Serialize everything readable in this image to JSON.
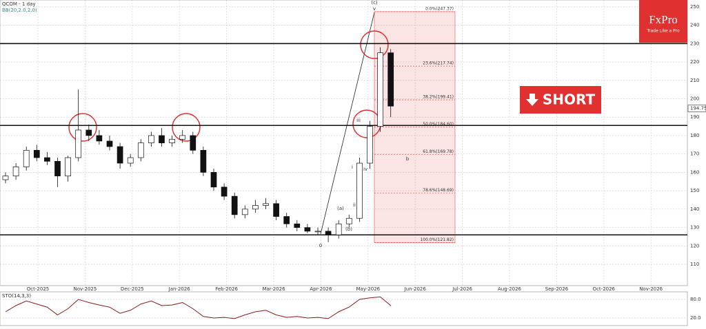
{
  "chart_data": {
    "type": "candlestick",
    "title": "QCOM - 1 day",
    "subtitle": "BB(20,2.0,2.0)",
    "months": [
      "Oct-2025",
      "Nov-2025",
      "Dec-2025",
      "Jan-2026",
      "Feb-2026",
      "Mar-2026",
      "Apr-2026",
      "May-2026",
      "Jun-2026",
      "Jul-2026",
      "Aug-2026",
      "Sep-2026",
      "Oct-2026",
      "Nov-2026"
    ],
    "ylim": [
      98.4,
      253.7
    ],
    "yticks": [
      110,
      120,
      130,
      140,
      150,
      160,
      170,
      180,
      190,
      200,
      210,
      220,
      230,
      240,
      250
    ],
    "open": [
      156,
      158,
      163,
      172,
      168,
      166,
      158,
      168,
      183,
      180,
      177,
      174,
      165,
      168,
      176,
      180,
      176,
      178,
      180,
      172,
      160,
      152,
      147,
      137,
      140,
      142,
      143,
      136,
      132,
      130,
      128,
      128,
      126,
      132,
      135,
      165,
      185,
      225
    ],
    "high": [
      160,
      165,
      174,
      175,
      171,
      168,
      169,
      205,
      186,
      183,
      180,
      176,
      170,
      178,
      182,
      184,
      180,
      183,
      182,
      174,
      162,
      154,
      149,
      142,
      145,
      146,
      145,
      138,
      134,
      132,
      130,
      130,
      134,
      137,
      168,
      188,
      228,
      227
    ],
    "low": [
      154,
      156,
      161,
      166,
      164,
      152,
      155,
      166,
      177,
      175,
      172,
      162,
      163,
      166,
      174,
      174,
      174,
      176,
      170,
      158,
      150,
      145,
      135,
      135,
      138,
      140,
      134,
      130,
      128,
      127,
      126,
      122,
      124,
      130,
      133,
      162,
      182,
      190
    ],
    "close": [
      158,
      163,
      172,
      168,
      166,
      158,
      168,
      183,
      180,
      177,
      174,
      165,
      168,
      176,
      180,
      176,
      178,
      180,
      172,
      160,
      152,
      147,
      137,
      140,
      142,
      143,
      136,
      132,
      130,
      128,
      128,
      126,
      132,
      135,
      165,
      185,
      225,
      196
    ],
    "levels": [
      230,
      185.5,
      126
    ],
    "last_price": 194.75,
    "fibonacci": [
      {
        "label": "0.0%(247.37)",
        "price": 247.37
      },
      {
        "label": "23.6%(217.74)",
        "price": 217.74
      },
      {
        "label": "38.2%(199.41)",
        "price": 199.41
      },
      {
        "label": "50.0%(184.60)",
        "price": 184.6
      },
      {
        "label": "61.8%(169.78)",
        "price": 169.78
      },
      {
        "label": "78.6%(148.69)",
        "price": 148.69
      },
      {
        "label": "100.0%(121.82)",
        "price": 121.82
      }
    ],
    "annotations": [
      "(c)",
      "v",
      "(a)",
      "(b)",
      "i",
      "ii",
      "iii",
      "iv",
      "b",
      "0"
    ],
    "logo": "FxPro",
    "slogan": "Trade Like a Pro",
    "signal": "SHORT",
    "oscillator": {
      "title": "STO(14,3,3)",
      "ylim": [
        0,
        100
      ],
      "yticks": [
        {
          "value": 80,
          "label": "80.0"
        },
        {
          "value": 20,
          "label": "20.0"
        }
      ],
      "values": [
        40,
        60,
        75,
        65,
        55,
        30,
        50,
        80,
        70,
        62,
        55,
        35,
        45,
        65,
        75,
        60,
        62,
        70,
        50,
        25,
        20,
        22,
        18,
        30,
        40,
        45,
        30,
        22,
        25,
        20,
        22,
        18,
        40,
        55,
        80,
        85,
        88,
        60
      ]
    }
  }
}
